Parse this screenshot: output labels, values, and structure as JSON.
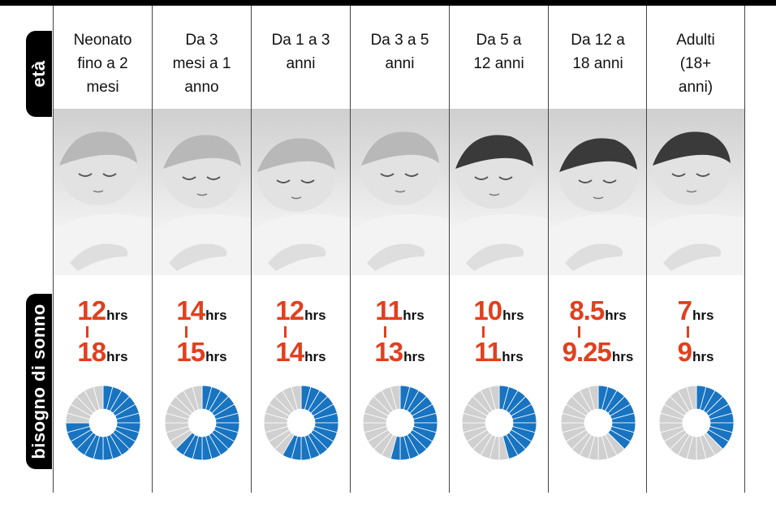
{
  "labels": {
    "age_tab": "età",
    "sleep_tab": "bisogno di sonno"
  },
  "colors": {
    "accent": "#e0401e",
    "fill": "#1874c1",
    "empty": "#d0d0d0"
  },
  "chart_data": {
    "type": "pie",
    "title": "",
    "segments_per_ring": 24,
    "categories": [
      "Neonato fino a 2 mesi",
      "Da 3 mesi a 1 anno",
      "Da 1 a 3 anni",
      "Da 3 a 5 anni",
      "Da 5 a 12 anni",
      "Da 12 a 18 anni",
      "Adulti (18+ anni)"
    ],
    "columns": [
      {
        "age_lines": [
          "Neonato",
          "fino a 2",
          "mesi"
        ],
        "min_label": "12",
        "max_label": "18",
        "unit": "hrs",
        "min": 12,
        "max": 18,
        "filled_segments": 18
      },
      {
        "age_lines": [
          "Da 3",
          "mesi a 1",
          "anno"
        ],
        "min_label": "14",
        "max_label": "15",
        "unit": "hrs",
        "min": 14,
        "max": 15,
        "filled_segments": 15
      },
      {
        "age_lines": [
          "Da 1 a 3",
          "anni"
        ],
        "min_label": "12",
        "max_label": "14",
        "unit": "hrs",
        "min": 12,
        "max": 14,
        "filled_segments": 14
      },
      {
        "age_lines": [
          "Da 3 a 5",
          "anni"
        ],
        "min_label": "11",
        "max_label": "13",
        "unit": "hrs",
        "min": 11,
        "max": 13,
        "filled_segments": 13
      },
      {
        "age_lines": [
          "Da 5 a",
          "12 anni"
        ],
        "min_label": "10",
        "max_label": "11",
        "unit": "hrs",
        "min": 10,
        "max": 11,
        "filled_segments": 11
      },
      {
        "age_lines": [
          "Da 12 a",
          "18 anni"
        ],
        "min_label": "8.5",
        "max_label": "9.25",
        "unit": "hrs",
        "min": 8.5,
        "max": 9.25,
        "filled_segments": 9.25
      },
      {
        "age_lines": [
          "Adulti",
          "(18+",
          "anni)"
        ],
        "min_label": "7",
        "max_label": "9",
        "unit": "hrs",
        "min": 7,
        "max": 9,
        "filled_segments": 9
      }
    ]
  }
}
